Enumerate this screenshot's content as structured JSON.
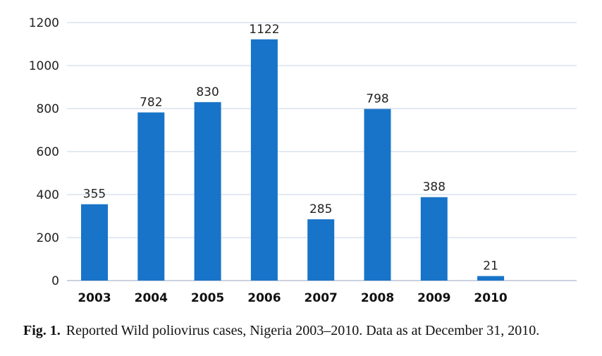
{
  "chart_data": {
    "type": "bar",
    "categories": [
      "2003",
      "2004",
      "2005",
      "2006",
      "2007",
      "2008",
      "2009",
      "2010"
    ],
    "values": [
      355,
      782,
      830,
      1122,
      285,
      798,
      388,
      21
    ],
    "data_labels": [
      "355",
      "782",
      "830",
      "1122",
      "285",
      "798",
      "388",
      "21"
    ],
    "yticks": [
      "0",
      "200",
      "400",
      "600",
      "800",
      "1000",
      "1200"
    ],
    "ylim": [
      0,
      1200
    ],
    "grid": true,
    "legend": "none",
    "bar_color": "#1874c8",
    "grid_color": "#c8d3e6"
  },
  "caption": {
    "label": "Fig. 1.",
    "text": "Reported Wild poliovirus cases, Nigeria 2003–2010. Data as at December 31, 2010."
  }
}
